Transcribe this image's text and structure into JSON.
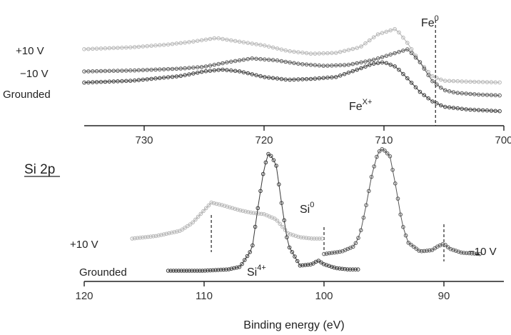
{
  "chart_data": [
    {
      "type": "line",
      "title": "",
      "xlabel": "",
      "ylabel": "",
      "xlim": [
        735,
        700
      ],
      "x_reversed": true,
      "ticks": [
        730,
        720,
        710,
        700
      ],
      "tick_labels": [
        "730",
        "720",
        "710",
        "700"
      ],
      "annotations": [
        {
          "text": "Fe",
          "sup": "0"
        },
        {
          "text": "Fe",
          "sup": "X+"
        }
      ],
      "ref_lines": [
        705.7
      ],
      "series": [
        {
          "name": "+10 V",
          "color": "#b4b4b4",
          "x": [
            735,
            731,
            728,
            726,
            724,
            722,
            720,
            718,
            716,
            714,
            712,
            710.5,
            709,
            708,
            707,
            706,
            705,
            703,
            700
          ],
          "y": [
            0.74,
            0.76,
            0.79,
            0.82,
            0.86,
            0.82,
            0.78,
            0.72,
            0.69,
            0.7,
            0.76,
            0.9,
            0.96,
            0.8,
            0.6,
            0.45,
            0.4,
            0.39,
            0.38
          ]
        },
        {
          "name": "−10 V",
          "color": "#575757",
          "x": [
            735,
            731,
            727,
            725,
            723,
            721,
            719,
            717,
            715,
            713,
            711,
            710,
            709,
            708,
            707,
            706,
            705,
            704,
            702,
            700
          ],
          "y": [
            0.5,
            0.51,
            0.53,
            0.55,
            0.6,
            0.64,
            0.62,
            0.58,
            0.56,
            0.57,
            0.62,
            0.66,
            0.7,
            0.74,
            0.6,
            0.4,
            0.3,
            0.27,
            0.25,
            0.24
          ]
        },
        {
          "name": "Grounded",
          "color": "#3a3a3a",
          "x": [
            735,
            731,
            727,
            725,
            723.5,
            722,
            720,
            718,
            716,
            714,
            712,
            711,
            710,
            709,
            708,
            707,
            706,
            705,
            703,
            700
          ],
          "y": [
            0.38,
            0.4,
            0.45,
            0.5,
            0.52,
            0.5,
            0.44,
            0.41,
            0.42,
            0.44,
            0.53,
            0.58,
            0.6,
            0.55,
            0.42,
            0.28,
            0.18,
            0.12,
            0.09,
            0.07
          ]
        }
      ]
    },
    {
      "type": "line",
      "title": "Si 2p",
      "xlabel": "Binding energy (eV)",
      "ylabel": "",
      "xlim": [
        120,
        85
      ],
      "x_reversed": true,
      "ticks": [
        120,
        110,
        100,
        90
      ],
      "tick_labels": [
        "120",
        "110",
        "100",
        "90"
      ],
      "annotations": [
        {
          "text": "Si",
          "sup": "0"
        },
        {
          "text": "Si",
          "sup": "4+"
        }
      ],
      "ref_lines": [
        109.4,
        100.0,
        90.0
      ],
      "series": [
        {
          "name": "+10 V",
          "color": "#b4b4b4",
          "x": [
            116,
            114,
            112,
            111,
            110,
            109.4,
            108.5,
            107,
            106,
            105,
            104,
            103,
            102,
            101,
            100
          ],
          "y": [
            0.3,
            0.32,
            0.36,
            0.42,
            0.52,
            0.58,
            0.56,
            0.52,
            0.5,
            0.49,
            0.45,
            0.34,
            0.31,
            0.3,
            0.3
          ]
        },
        {
          "name": "Grounded",
          "color": "#3a3a3a",
          "x": [
            113,
            110,
            108,
            107,
            106,
            105.5,
            105,
            104.6,
            104,
            103.5,
            103,
            102,
            101,
            100.5,
            100,
            99,
            98,
            97
          ],
          "y": [
            0.05,
            0.05,
            0.06,
            0.08,
            0.22,
            0.55,
            0.85,
            0.97,
            0.88,
            0.55,
            0.25,
            0.09,
            0.1,
            0.13,
            0.1,
            0.07,
            0.06,
            0.06
          ]
        },
        {
          "name": "−10 V",
          "color": "#555555",
          "x": [
            100,
            98.5,
            97.5,
            97,
            96.5,
            96,
            95.5,
            95.1,
            94.5,
            94,
            93.5,
            93,
            92,
            91,
            90.5,
            90,
            89.5,
            88.5,
            87
          ],
          "y": [
            0.18,
            0.2,
            0.24,
            0.33,
            0.55,
            0.8,
            0.97,
            1.0,
            0.94,
            0.7,
            0.42,
            0.27,
            0.2,
            0.21,
            0.24,
            0.26,
            0.22,
            0.19,
            0.18
          ]
        }
      ]
    }
  ],
  "labels": {
    "top_plus10": "+10 V",
    "top_minus10": "−10 V",
    "top_grounded": "Grounded",
    "fe0_base": "Fe",
    "fe0_sup": "0",
    "fex_base": "Fe",
    "fex_sup": "X+",
    "panel_title": "Si 2p",
    "bot_plus10": "+10 V",
    "bot_grounded": "Grounded",
    "bot_minus10": "−10 V",
    "si0_base": "Si",
    "si0_sup": "0",
    "si4_base": "Si",
    "si4_sup": "4+",
    "xlabel": "Binding energy (eV)"
  }
}
